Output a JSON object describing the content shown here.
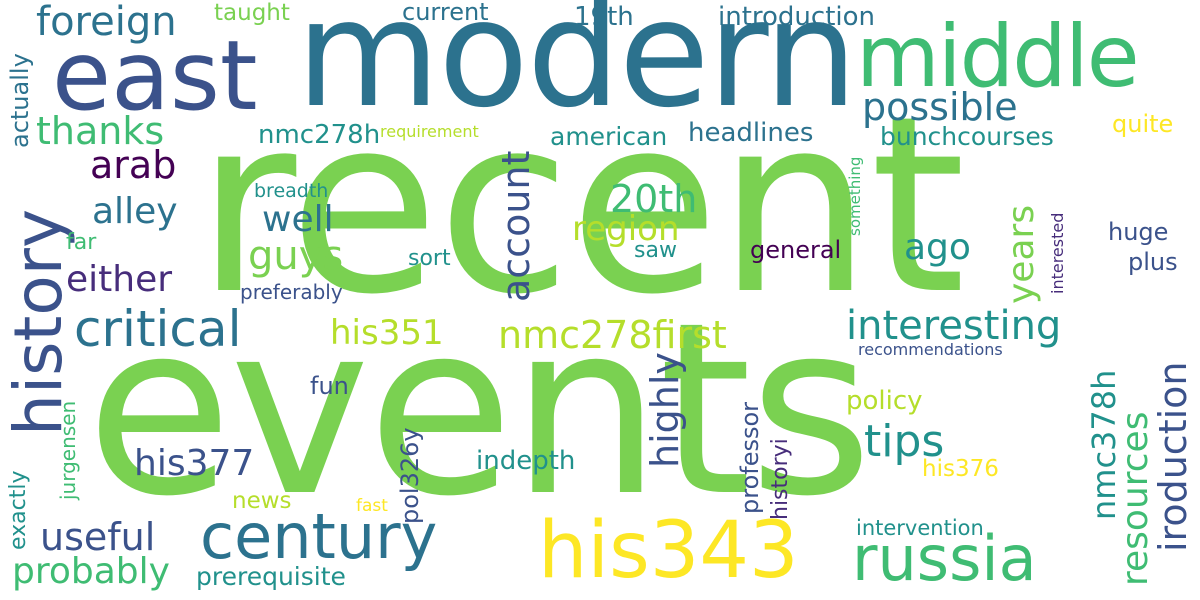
{
  "palette": {
    "bright_green": "#7ad151",
    "mid_green": "#3fbc73",
    "teal": "#21918c",
    "blue_teal": "#2c728e",
    "slate": "#3b528b",
    "indigo": "#472d7b",
    "purple": "#440154",
    "yellow": "#fde725",
    "yellow_green": "#b5de2b"
  },
  "words": [
    {
      "text": "recent",
      "color": "bright_green"
    },
    {
      "text": "events",
      "color": "bright_green"
    },
    {
      "text": "modern",
      "color": "blue_teal"
    },
    {
      "text": "east",
      "color": "slate"
    },
    {
      "text": "middle",
      "color": "mid_green"
    },
    {
      "text": "history",
      "color": "slate"
    },
    {
      "text": "his343",
      "color": "yellow"
    },
    {
      "text": "century",
      "color": "blue_teal"
    },
    {
      "text": "russia",
      "color": "mid_green"
    },
    {
      "text": "critical",
      "color": "blue_teal"
    },
    {
      "text": "foreign",
      "color": "blue_teal"
    },
    {
      "text": "thanks",
      "color": "mid_green"
    },
    {
      "text": "possible",
      "color": "blue_teal"
    },
    {
      "text": "interesting",
      "color": "teal"
    },
    {
      "text": "nmc278first",
      "color": "yellow_green"
    },
    {
      "text": "arab",
      "color": "purple"
    },
    {
      "text": "alley",
      "color": "blue_teal"
    },
    {
      "text": "either",
      "color": "indigo"
    },
    {
      "text": "guys",
      "color": "bright_green"
    },
    {
      "text": "well",
      "color": "blue_teal"
    },
    {
      "text": "20th",
      "color": "mid_green"
    },
    {
      "text": "region",
      "color": "yellow_green"
    },
    {
      "text": "account",
      "color": "slate"
    },
    {
      "text": "his351",
      "color": "yellow_green"
    },
    {
      "text": "his377",
      "color": "slate"
    },
    {
      "text": "tips",
      "color": "teal"
    },
    {
      "text": "useful",
      "color": "slate"
    },
    {
      "text": "probably",
      "color": "mid_green"
    },
    {
      "text": "prerequisite",
      "color": "teal"
    },
    {
      "text": "highly",
      "color": "slate"
    },
    {
      "text": "iroduction",
      "color": "slate"
    },
    {
      "text": "resources",
      "color": "mid_green"
    },
    {
      "text": "nmc378h",
      "color": "teal"
    },
    {
      "text": "years",
      "color": "bright_green"
    },
    {
      "text": "ago",
      "color": "teal"
    },
    {
      "text": "headlines",
      "color": "blue_teal"
    },
    {
      "text": "american",
      "color": "teal"
    },
    {
      "text": "bunchcourses",
      "color": "teal"
    },
    {
      "text": "nmc278h",
      "color": "teal"
    },
    {
      "text": "current",
      "color": "blue_teal"
    },
    {
      "text": "19th",
      "color": "blue_teal"
    },
    {
      "text": "introduction",
      "color": "blue_teal"
    },
    {
      "text": "taught",
      "color": "bright_green"
    },
    {
      "text": "actually",
      "color": "blue_teal"
    },
    {
      "text": "requirement",
      "color": "yellow_green"
    },
    {
      "text": "quite",
      "color": "yellow"
    },
    {
      "text": "breadth",
      "color": "teal"
    },
    {
      "text": "far",
      "color": "mid_green"
    },
    {
      "text": "sort",
      "color": "teal"
    },
    {
      "text": "saw",
      "color": "teal"
    },
    {
      "text": "general",
      "color": "purple"
    },
    {
      "text": "huge",
      "color": "slate"
    },
    {
      "text": "plus",
      "color": "slate"
    },
    {
      "text": "something",
      "color": "mid_green"
    },
    {
      "text": "interested",
      "color": "indigo"
    },
    {
      "text": "preferably",
      "color": "slate"
    },
    {
      "text": "recommendations",
      "color": "slate"
    },
    {
      "text": "fun",
      "color": "slate"
    },
    {
      "text": "policy",
      "color": "yellow_green"
    },
    {
      "text": "exactly",
      "color": "teal"
    },
    {
      "text": "jurgensen",
      "color": "mid_green"
    },
    {
      "text": "pol326y",
      "color": "slate"
    },
    {
      "text": "professor",
      "color": "slate"
    },
    {
      "text": "historyi",
      "color": "indigo"
    },
    {
      "text": "his376",
      "color": "yellow"
    },
    {
      "text": "indepth",
      "color": "teal"
    },
    {
      "text": "news",
      "color": "yellow_green"
    },
    {
      "text": "fast",
      "color": "yellow"
    },
    {
      "text": "intervention",
      "color": "teal"
    }
  ]
}
